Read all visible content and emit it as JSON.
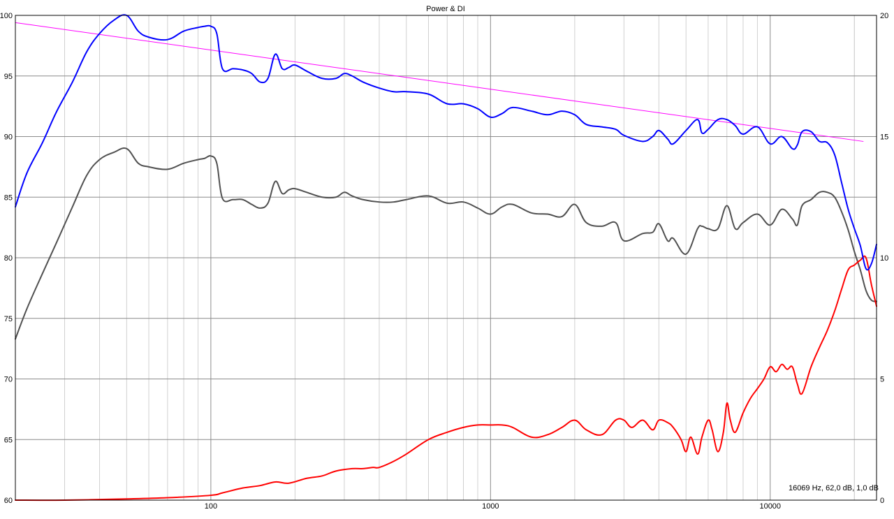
{
  "chart_data": {
    "type": "line",
    "title": "Power & DI",
    "x_scale": "log",
    "xlim": [
      20,
      24000
    ],
    "ylim": [
      60,
      100
    ],
    "ylim_right": [
      0,
      20
    ],
    "grid": true,
    "x_tick_labels": [
      {
        "value": 100,
        "label": "100"
      },
      {
        "value": 1000,
        "label": "1000"
      },
      {
        "value": 10000,
        "label": "10000"
      }
    ],
    "y_tick_labels": [
      "60",
      "65",
      "70",
      "75",
      "80",
      "85",
      "90",
      "95",
      "100"
    ],
    "y_right_tick_labels": [
      "0",
      "5",
      "10",
      "15",
      "20"
    ],
    "readout": "16069 Hz, 62,0 dB, 1,0 dB",
    "colors": {
      "grid_major": "#8a8a8a",
      "grid_minor": "#d0d0d0",
      "axis_frame": "#000000",
      "power": "#0000ff",
      "secondary": "#505050",
      "di": "#ff0000",
      "trend": "#ff00ff"
    },
    "series": [
      {
        "key": "power",
        "axis": "left",
        "x": [
          20,
          22,
          25,
          28,
          32,
          36,
          40,
          45,
          50,
          55,
          60,
          70,
          80,
          90,
          95,
          100,
          105,
          110,
          120,
          130,
          140,
          150,
          160,
          170,
          180,
          190,
          200,
          220,
          250,
          280,
          300,
          320,
          350,
          400,
          450,
          500,
          600,
          700,
          800,
          900,
          1000,
          1100,
          1200,
          1400,
          1600,
          1800,
          2000,
          2200,
          2500,
          2800,
          3000,
          3500,
          3800,
          4000,
          4300,
          4500,
          5000,
          5500,
          5700,
          6000,
          6500,
          7000,
          7500,
          8000,
          9000,
          10000,
          11000,
          12000,
          12500,
          13000,
          14000,
          15000,
          16000,
          17000,
          18000,
          19000,
          20000,
          21000,
          22000,
          23000,
          24000
        ],
        "y": [
          84.2,
          87,
          89.5,
          92,
          94.5,
          97,
          98.5,
          99.6,
          100,
          98.7,
          98.2,
          98,
          98.7,
          99,
          99.1,
          99.1,
          98.5,
          95.6,
          95.6,
          95.5,
          95.2,
          94.5,
          94.8,
          96.8,
          95.6,
          95.7,
          95.9,
          95.4,
          94.8,
          94.8,
          95.2,
          95,
          94.5,
          94,
          93.7,
          93.7,
          93.5,
          92.7,
          92.7,
          92.3,
          91.6,
          91.9,
          92.4,
          92.1,
          91.8,
          92.1,
          91.8,
          91,
          90.8,
          90.6,
          90.1,
          89.6,
          90,
          90.5,
          89.8,
          89.4,
          90.5,
          91.4,
          90.3,
          90.6,
          91.4,
          91.4,
          90.9,
          90.2,
          90.8,
          89.4,
          90,
          89,
          89.3,
          90.4,
          90.4,
          89.6,
          89.5,
          88.5,
          86.2,
          84,
          82.4,
          81,
          79.1,
          79.5,
          81.1
        ]
      },
      {
        "key": "secondary",
        "axis": "left",
        "x": [
          20,
          22,
          25,
          28,
          32,
          36,
          40,
          45,
          50,
          55,
          60,
          70,
          80,
          90,
          95,
          100,
          105,
          110,
          120,
          130,
          140,
          150,
          160,
          170,
          180,
          190,
          200,
          220,
          250,
          280,
          300,
          320,
          350,
          400,
          450,
          500,
          600,
          700,
          800,
          900,
          1000,
          1100,
          1200,
          1400,
          1600,
          1800,
          2000,
          2200,
          2500,
          2800,
          3000,
          3500,
          3800,
          4000,
          4300,
          4500,
          5000,
          5500,
          5700,
          6000,
          6500,
          7000,
          7500,
          8000,
          9000,
          10000,
          11000,
          12000,
          12500,
          13000,
          14000,
          15000,
          16000,
          17000,
          18000,
          19000,
          20000,
          21000,
          22000,
          23000,
          24000
        ],
        "y": [
          73.3,
          75.8,
          78.7,
          81.2,
          84.2,
          86.8,
          88.1,
          88.7,
          89,
          87.8,
          87.5,
          87.3,
          87.8,
          88.1,
          88.2,
          88.4,
          87.8,
          84.9,
          84.8,
          84.8,
          84.4,
          84.1,
          84.5,
          86.3,
          85.3,
          85.6,
          85.7,
          85.4,
          85,
          85,
          85.4,
          85.1,
          84.8,
          84.6,
          84.6,
          84.8,
          85.1,
          84.5,
          84.6,
          84.1,
          83.6,
          84.2,
          84.4,
          83.7,
          83.6,
          83.4,
          84.4,
          82.9,
          82.6,
          82.9,
          81.4,
          82,
          82.1,
          82.8,
          81.4,
          81.6,
          80.3,
          82.4,
          82.6,
          82.4,
          82.4,
          84.3,
          82.4,
          82.9,
          83.6,
          82.7,
          84,
          83.2,
          82.7,
          84.3,
          84.8,
          85.4,
          85.4,
          85,
          83.8,
          82.3,
          80.5,
          79,
          77.3,
          76.5,
          76.4
        ]
      },
      {
        "key": "di",
        "axis": "right",
        "x": [
          20,
          30,
          50,
          70,
          100,
          110,
          130,
          150,
          170,
          190,
          220,
          250,
          280,
          320,
          350,
          380,
          400,
          450,
          500,
          600,
          700,
          800,
          900,
          1000,
          1100,
          1200,
          1400,
          1600,
          1800,
          2000,
          2200,
          2500,
          2800,
          3000,
          3200,
          3500,
          3800,
          4000,
          4300,
          4500,
          4800,
          5000,
          5200,
          5500,
          5700,
          6000,
          6200,
          6500,
          6800,
          7000,
          7200,
          7500,
          8000,
          8500,
          9000,
          9500,
          10000,
          10500,
          11000,
          11500,
          12000,
          12500,
          13000,
          14000,
          15000,
          16000,
          17000,
          18000,
          19000,
          20000,
          21000,
          22000,
          23000,
          24000
        ],
        "y": [
          0,
          0,
          0.05,
          0.1,
          0.2,
          0.3,
          0.5,
          0.6,
          0.75,
          0.7,
          0.9,
          1.0,
          1.2,
          1.3,
          1.3,
          1.35,
          1.35,
          1.6,
          1.9,
          2.5,
          2.8,
          3.0,
          3.1,
          3.1,
          3.1,
          3.0,
          2.6,
          2.7,
          3.0,
          3.3,
          2.9,
          2.7,
          3.3,
          3.3,
          3.0,
          3.3,
          2.9,
          3.3,
          3.2,
          3.0,
          2.5,
          2.0,
          2.6,
          1.9,
          2.6,
          3.3,
          2.9,
          2.0,
          2.8,
          4.0,
          3.3,
          2.8,
          3.6,
          4.2,
          4.6,
          5.0,
          5.5,
          5.3,
          5.6,
          5.4,
          5.5,
          4.8,
          4.4,
          5.5,
          6.3,
          7.0,
          7.8,
          8.7,
          9.5,
          9.7,
          9.9,
          10.0,
          8.9,
          8.0
        ]
      },
      {
        "key": "trend",
        "axis": "left",
        "x": [
          20,
          21500
        ],
        "y": [
          99.4,
          89.6
        ]
      }
    ]
  }
}
